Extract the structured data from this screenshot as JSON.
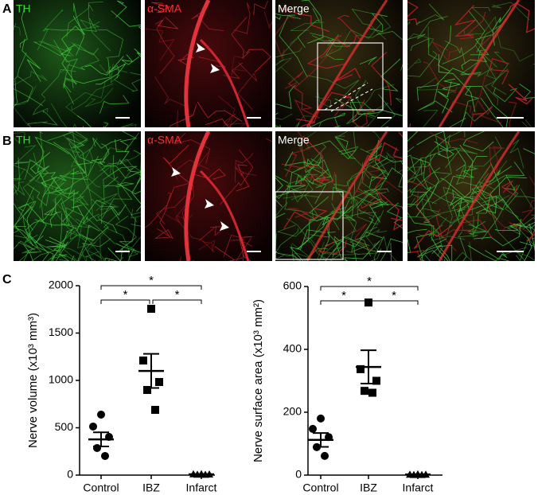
{
  "figure": {
    "panel_letters": [
      "A",
      "B",
      "C"
    ],
    "rows": [
      {
        "labels": [
          "TH",
          "α-SMA",
          "Merge"
        ]
      },
      {
        "labels": [
          "TH",
          "α-SMA",
          "Merge"
        ]
      }
    ]
  },
  "chart_data": [
    {
      "type": "dot",
      "y_label": "Nerve volume (x10³ mm³)",
      "categories": [
        "Control",
        "IBZ",
        "Infarct"
      ],
      "points": [
        [
          639,
          513,
          403,
          286,
          202
        ],
        [
          1756,
          1210,
          983,
          899,
          689
        ],
        [
          12,
          10,
          8,
          6,
          5
        ]
      ],
      "mean": [
        377,
        1100,
        8
      ],
      "sem": [
        75,
        180,
        2
      ],
      "markers": [
        "circle",
        "square",
        "triangle"
      ],
      "ylim": [
        0,
        2000
      ],
      "yticks": [
        0,
        500,
        1000,
        1500,
        2000
      ],
      "significance": [
        {
          "from": 0,
          "to": 2,
          "label": "*"
        },
        {
          "from": 0,
          "to": 1,
          "label": "*"
        },
        {
          "from": 1,
          "to": 2,
          "label": "*"
        }
      ]
    },
    {
      "type": "dot",
      "y_label": "Nerve surface area (x10³ mm²)",
      "categories": [
        "Control",
        "IBZ",
        "Infarct"
      ],
      "points": [
        [
          180,
          147,
          121,
          89,
          61
        ],
        [
          549,
          337,
          300,
          268,
          262
        ],
        [
          3,
          2,
          2,
          1,
          1
        ]
      ],
      "mean": [
        112,
        344,
        2
      ],
      "sem": [
        22,
        53,
        1
      ],
      "markers": [
        "circle",
        "square",
        "triangle"
      ],
      "ylim": [
        0,
        600
      ],
      "yticks": [
        0,
        200,
        400,
        600
      ],
      "significance": [
        {
          "from": 0,
          "to": 2,
          "label": "*"
        },
        {
          "from": 0,
          "to": 1,
          "label": "*"
        },
        {
          "from": 1,
          "to": 2,
          "label": "*"
        }
      ]
    }
  ]
}
